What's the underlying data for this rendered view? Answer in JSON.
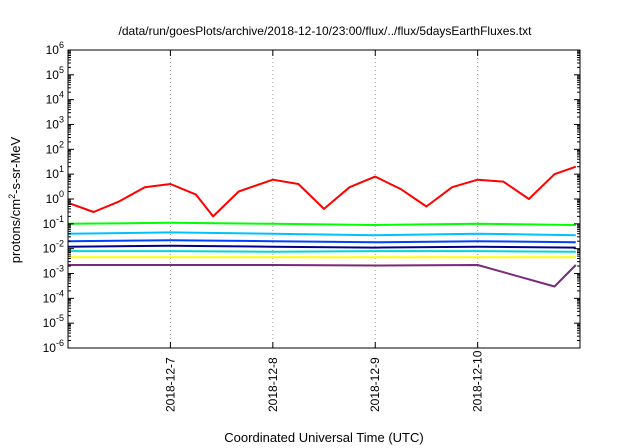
{
  "chart_data": {
    "type": "line",
    "title": "/data/run/goesPlots/archive/2018-12-10/23:00/flux/../flux/5daysEarthFluxes.txt",
    "xlabel": "Coordinated Universal Time (UTC)",
    "ylabel": {
      "prefix": "protons/cm",
      "sup": "2",
      "suffix": "-s-sr-MeV"
    },
    "x_range": [
      "2018-12-06",
      "2018-12-10T23:59"
    ],
    "x_ticks": [
      "2018-12-7",
      "2018-12-8",
      "2018-12-9",
      "2018-12-10"
    ],
    "y_scale": "log",
    "ylim": [
      1e-06,
      1000000.0
    ],
    "y_ticks": [
      {
        "base": "10",
        "exp": "-6"
      },
      {
        "base": "10",
        "exp": "-5"
      },
      {
        "base": "10",
        "exp": "-4"
      },
      {
        "base": "10",
        "exp": "-3"
      },
      {
        "base": "10",
        "exp": "-2"
      },
      {
        "base": "10",
        "exp": "-1"
      },
      {
        "base": "10",
        "exp": "0"
      },
      {
        "base": "10",
        "exp": "1"
      },
      {
        "base": "10",
        "exp": "2"
      },
      {
        "base": "10",
        "exp": "3"
      },
      {
        "base": "10",
        "exp": "4"
      },
      {
        "base": "10",
        "exp": "5"
      },
      {
        "base": "10",
        "exp": "6"
      }
    ],
    "grid": true,
    "series": [
      {
        "color": "#ff0000",
        "x": [
          "2018-12-06 00:00",
          "2018-12-06 06:00",
          "2018-12-06 12:00",
          "2018-12-06 18:00",
          "2018-12-07 00:00",
          "2018-12-07 06:00",
          "2018-12-07 10:00",
          "2018-12-07 16:00",
          "2018-12-08 00:00",
          "2018-12-08 06:00",
          "2018-12-08 12:00",
          "2018-12-08 18:00",
          "2018-12-09 00:00",
          "2018-12-09 06:00",
          "2018-12-09 12:00",
          "2018-12-09 18:00",
          "2018-12-10 00:00",
          "2018-12-10 06:00",
          "2018-12-10 12:00",
          "2018-12-10 18:00",
          "2018-12-10 23:00"
        ],
        "y": [
          0.7,
          0.3,
          0.8,
          3,
          4,
          1.5,
          0.2,
          2,
          6,
          4,
          0.4,
          3,
          8,
          2.5,
          0.5,
          3,
          6,
          5,
          1,
          10,
          20
        ]
      },
      {
        "color": "#00ff00",
        "x": [
          "2018-12-06 00:00",
          "2018-12-07 00:00",
          "2018-12-08 00:00",
          "2018-12-09 00:00",
          "2018-12-10 00:00",
          "2018-12-10 23:00"
        ],
        "y": [
          0.1,
          0.11,
          0.1,
          0.09,
          0.1,
          0.09
        ]
      },
      {
        "color": "#00c0ff",
        "x": [
          "2018-12-06 00:00",
          "2018-12-07 00:00",
          "2018-12-08 00:00",
          "2018-12-09 00:00",
          "2018-12-10 00:00",
          "2018-12-10 23:00"
        ],
        "y": [
          0.04,
          0.045,
          0.04,
          0.035,
          0.04,
          0.035
        ]
      },
      {
        "color": "#0040ff",
        "x": [
          "2018-12-06 00:00",
          "2018-12-07 00:00",
          "2018-12-08 00:00",
          "2018-12-09 00:00",
          "2018-12-10 00:00",
          "2018-12-10 23:00"
        ],
        "y": [
          0.02,
          0.022,
          0.02,
          0.018,
          0.02,
          0.018
        ]
      },
      {
        "color": "#00008b",
        "x": [
          "2018-12-06 00:00",
          "2018-12-07 00:00",
          "2018-12-08 00:00",
          "2018-12-09 00:00",
          "2018-12-10 00:00",
          "2018-12-10 23:00"
        ],
        "y": [
          0.012,
          0.013,
          0.012,
          0.011,
          0.012,
          0.011
        ]
      },
      {
        "color": "#00d8d8",
        "x": [
          "2018-12-06 00:00",
          "2018-12-07 00:00",
          "2018-12-08 00:00",
          "2018-12-09 00:00",
          "2018-12-10 00:00",
          "2018-12-10 23:00"
        ],
        "y": [
          0.008,
          0.008,
          0.0075,
          0.008,
          0.008,
          0.0075
        ]
      },
      {
        "color": "#ffff00",
        "x": [
          "2018-12-06 00:00",
          "2018-12-07 00:00",
          "2018-12-08 00:00",
          "2018-12-09 00:00",
          "2018-12-10 00:00",
          "2018-12-10 23:00"
        ],
        "y": [
          0.0045,
          0.0045,
          0.0045,
          0.0045,
          0.0045,
          0.0045
        ]
      },
      {
        "color": "#7a2a7a",
        "x": [
          "2018-12-06 00:00",
          "2018-12-07 00:00",
          "2018-12-08 00:00",
          "2018-12-09 00:00",
          "2018-12-10 00:00",
          "2018-12-10 18:00",
          "2018-12-10 23:00"
        ],
        "y": [
          0.0022,
          0.0022,
          0.0022,
          0.0021,
          0.0022,
          0.0003,
          0.0022
        ]
      }
    ]
  }
}
